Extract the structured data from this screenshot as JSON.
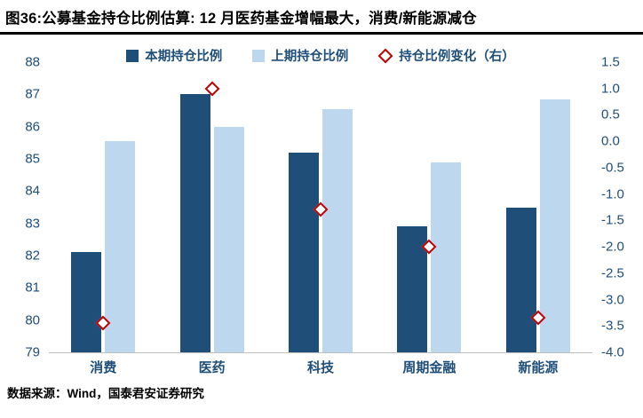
{
  "chart_data": {
    "type": "bar",
    "title": "图36:公募基金持仓比例估算: 12 月医药基金增幅最大，消费/新能源减仓",
    "categories": [
      "消费",
      "医药",
      "科技",
      "周期金融",
      "新能源"
    ],
    "series": [
      {
        "name": "本期持仓比例",
        "axis": "left",
        "color": "#1F4E79",
        "values": [
          82.1,
          87.0,
          85.2,
          82.9,
          83.5
        ]
      },
      {
        "name": "上期持仓比例",
        "axis": "left",
        "color": "#BDD7EE",
        "values": [
          85.55,
          86.0,
          86.55,
          84.9,
          86.85
        ]
      }
    ],
    "marker_series": {
      "name": "持仓比例变化（右）",
      "axis": "right",
      "color": "#C00000",
      "values": [
        -3.45,
        1.0,
        -1.3,
        -2.0,
        -3.35
      ]
    },
    "left_axis": {
      "min": 79,
      "max": 88,
      "step": 1
    },
    "right_axis": {
      "min": -4.0,
      "max": 1.5,
      "step": 0.5
    },
    "legend_position": "top",
    "grid": false,
    "source": "数据来源：Wind，国泰君安证券研究"
  }
}
